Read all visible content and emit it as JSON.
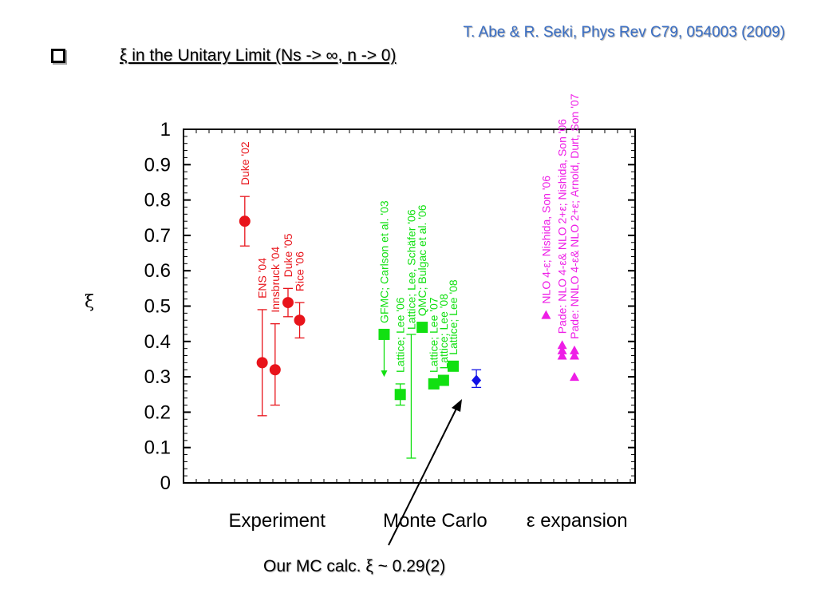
{
  "citation": "T. Abe & R. Seki, Phys Rev C79, 054003 (2009)",
  "slide_title": "ξ in the Unitary Limit (Ns -> ∞, n -> 0)",
  "footnote": "Our MC calc. ξ ~ 0.29(2)",
  "colors": {
    "experiment": "#e8141b",
    "monte_carlo": "#11e011",
    "our_mc": "#1212e6",
    "eps_expansion": "#ee1ee6",
    "citation": "#3b6fc4"
  },
  "chart_data": {
    "type": "scatter",
    "title": "",
    "xlabel": "",
    "ylabel": "ξ",
    "ylim": [
      0,
      1
    ],
    "yticks": [
      "0",
      "0.1",
      "0.2",
      "0.3",
      "0.4",
      "0.5",
      "0.6",
      "0.7",
      "0.8",
      "0.9",
      "1"
    ],
    "categories": [
      "Experiment",
      "Monte Carlo",
      "ε expansion"
    ],
    "series": [
      {
        "group": "Experiment",
        "marker": "circle",
        "color": "#e8141b",
        "points": [
          {
            "label": "Duke '02",
            "x": 0.95,
            "y": 0.74,
            "err_low": 0.07,
            "err_high": 0.07
          },
          {
            "label": "ENS '04",
            "x": 1.22,
            "y": 0.34,
            "err_low": 0.15,
            "err_high": 0.15
          },
          {
            "label": "Innsbruck '04",
            "x": 1.42,
            "y": 0.32,
            "err_low": 0.1,
            "err_high": 0.13
          },
          {
            "label": "Duke '05",
            "x": 1.62,
            "y": 0.51,
            "err_low": 0.04,
            "err_high": 0.04
          },
          {
            "label": "Rice '06",
            "x": 1.8,
            "y": 0.46,
            "err_low": 0.05,
            "err_high": 0.05
          }
        ]
      },
      {
        "group": "Monte Carlo",
        "marker": "square",
        "color": "#11e011",
        "points": [
          {
            "label": "GFMC; Carlson et al. '03",
            "x": 3.11,
            "y": 0.42,
            "arrow_to": 0.3
          },
          {
            "label": "Lattice; Lee '06",
            "x": 3.36,
            "y": 0.25,
            "err_low": 0.03,
            "err_high": 0.03
          },
          {
            "label": "Lattice; Lee, Schäfer '06",
            "x": 3.53,
            "y": null,
            "err_low_abs": 0.07,
            "err_high_abs": 0.42
          },
          {
            "label": "QMC; Bulgac et al. '06",
            "x": 3.7,
            "y": 0.44
          },
          {
            "label": "Lattice; Lee '07",
            "x": 3.88,
            "y": 0.28
          },
          {
            "label": "Lattice; Lee '08",
            "x": 4.03,
            "y": 0.29
          },
          {
            "label": "Lattice; Lee '08",
            "x": 4.18,
            "y": 0.33
          }
        ]
      },
      {
        "group": "Our MC",
        "marker": "diamond",
        "color": "#1212e6",
        "points": [
          {
            "label": "",
            "x": 4.54,
            "y": 0.29,
            "err_low": 0.02,
            "err_high": 0.03
          }
        ]
      },
      {
        "group": "ε expansion",
        "marker": "triangle",
        "color": "#ee1ee6",
        "points": [
          {
            "label": "NLO 4-ε; Nishida, Son '06",
            "x": 5.62,
            "y": 0.475
          },
          {
            "label": "Pade: NLO 4-ε&  NLO 2+ε; Nishida, Son '06",
            "x": 5.87,
            "y": 0.39
          },
          {
            "label": "",
            "x": 5.87,
            "y": 0.375
          },
          {
            "label": "",
            "x": 5.87,
            "y": 0.36
          },
          {
            "label": "Pade: NNLO 4-ε&  NLO 2+ε; Arnold, Durt, Son '07",
            "x": 6.06,
            "y": 0.375
          },
          {
            "label": "",
            "x": 6.06,
            "y": 0.36
          },
          {
            "label": "",
            "x": 6.06,
            "y": 0.3
          }
        ]
      }
    ]
  }
}
